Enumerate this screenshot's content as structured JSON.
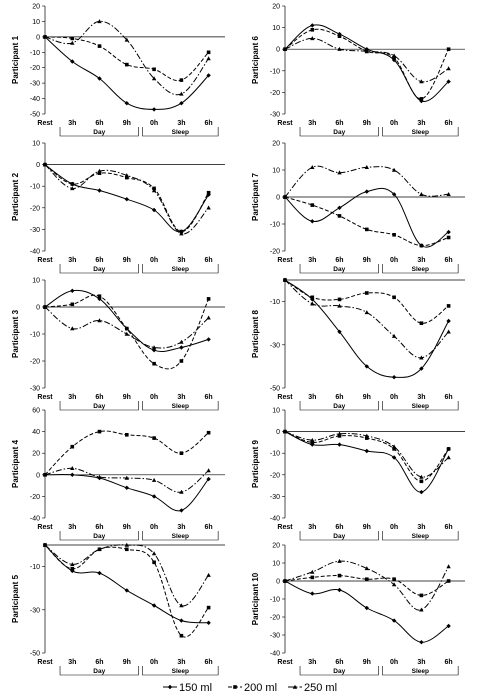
{
  "legend": [
    {
      "label": "150 ml",
      "series": 0
    },
    {
      "label": "200 ml",
      "series": 1
    },
    {
      "label": "250 ml",
      "series": 2
    }
  ],
  "chart_data": [
    {
      "type": "line",
      "ylabel": "Participant 1",
      "ylim": [
        -50,
        20
      ],
      "yticks": [
        -50,
        -40,
        -30,
        -20,
        -10,
        0,
        10,
        20
      ],
      "categories": [
        "Rest",
        "3h",
        "6h",
        "9h",
        "0h",
        "3h",
        "6h"
      ],
      "groups": [
        "Day",
        "Sleep"
      ],
      "series": [
        {
          "name": "150 ml",
          "values": [
            0,
            -16,
            -27,
            -43,
            -47,
            -43,
            -25
          ]
        },
        {
          "name": "200 ml",
          "values": [
            0,
            -1,
            -6,
            -18,
            -21,
            -28,
            -10
          ]
        },
        {
          "name": "250 ml",
          "values": [
            0,
            -4,
            10,
            -2,
            -27,
            -37,
            -14
          ]
        }
      ]
    },
    {
      "type": "line",
      "ylabel": "Participant 6",
      "ylim": [
        -30,
        20
      ],
      "yticks": [
        -30,
        -20,
        -10,
        0,
        10,
        20
      ],
      "categories": [
        "Rest",
        "3h",
        "6h",
        "9h",
        "0h",
        "3h",
        "6h"
      ],
      "groups": [
        "Day",
        "Sleep"
      ],
      "series": [
        {
          "name": "150 ml",
          "values": [
            0,
            11,
            7,
            0,
            -5,
            -24,
            -15
          ]
        },
        {
          "name": "200 ml",
          "values": [
            0,
            9,
            6,
            -1,
            -4,
            -23,
            0
          ]
        },
        {
          "name": "250 ml",
          "values": [
            0,
            5,
            0,
            -1,
            -3,
            -15,
            -9
          ]
        }
      ]
    },
    {
      "type": "line",
      "ylabel": "Participant 2",
      "ylim": [
        -40,
        10
      ],
      "yticks": [
        -40,
        -30,
        -20,
        -10,
        0,
        10
      ],
      "categories": [
        "Rest",
        "3h",
        "6h",
        "9h",
        "0h",
        "3h",
        "6h"
      ],
      "groups": [
        "Day",
        "Sleep"
      ],
      "series": [
        {
          "name": "150 ml",
          "values": [
            0,
            -9,
            -12,
            -16,
            -21,
            -31,
            -14
          ]
        },
        {
          "name": "200 ml",
          "values": [
            0,
            -9,
            -4,
            -6,
            -11,
            -31,
            -13
          ]
        },
        {
          "name": "250 ml",
          "values": [
            0,
            -11,
            -3,
            -5,
            -12,
            -32,
            -20
          ]
        }
      ]
    },
    {
      "type": "line",
      "ylabel": "Participant 7",
      "ylim": [
        -20,
        20
      ],
      "yticks": [
        -20,
        -10,
        0,
        10,
        20
      ],
      "categories": [
        "Rest",
        "3h",
        "6h",
        "9h",
        "0h",
        "3h",
        "6h"
      ],
      "groups": [
        "Day",
        "Sleep"
      ],
      "series": [
        {
          "name": "150 ml",
          "values": [
            0,
            -9,
            -4,
            2,
            1,
            -18,
            -13
          ]
        },
        {
          "name": "200 ml",
          "values": [
            0,
            -3,
            -7,
            -12,
            -14,
            -18,
            -15
          ]
        },
        {
          "name": "250 ml",
          "values": [
            0,
            11,
            9,
            11,
            10,
            1,
            1
          ]
        }
      ]
    },
    {
      "type": "line",
      "ylabel": "Participant 3",
      "ylim": [
        -30,
        10
      ],
      "yticks": [
        -30,
        -20,
        -10,
        0,
        10
      ],
      "categories": [
        "Rest",
        "3h",
        "6h",
        "9h",
        "0h",
        "3h",
        "6h"
      ],
      "groups": [
        "Day",
        "Sleep"
      ],
      "series": [
        {
          "name": "150 ml",
          "values": [
            0,
            6,
            3,
            -8,
            -16,
            -15,
            -12
          ]
        },
        {
          "name": "200 ml",
          "values": [
            0,
            1,
            4,
            -8,
            -21,
            -20,
            3
          ]
        },
        {
          "name": "250 ml",
          "values": [
            0,
            -8,
            -5,
            -10,
            -15,
            -13,
            -4
          ]
        }
      ]
    },
    {
      "type": "line",
      "ylabel": "Participant 8",
      "ylim": [
        -50,
        0
      ],
      "yticks": [
        -50,
        -30,
        -10
      ],
      "categories": [
        "Rest",
        "3h",
        "6h",
        "9h",
        "0h",
        "3h",
        "6h"
      ],
      "groups": [
        "Day",
        "Sleep"
      ],
      "series": [
        {
          "name": "150 ml",
          "values": [
            0,
            -9,
            -24,
            -40,
            -45,
            -41,
            -19
          ]
        },
        {
          "name": "200 ml",
          "values": [
            0,
            -8,
            -9,
            -6,
            -8,
            -20,
            -12
          ]
        },
        {
          "name": "250 ml",
          "values": [
            0,
            -11,
            -12,
            -15,
            -26,
            -36,
            -24
          ]
        }
      ]
    },
    {
      "type": "line",
      "ylabel": "Participant 4",
      "ylim": [
        -40,
        60
      ],
      "yticks": [
        -40,
        -20,
        0,
        20,
        40,
        60
      ],
      "categories": [
        "Rest",
        "3h",
        "6h",
        "9h",
        "0h",
        "3h",
        "6h"
      ],
      "groups": [
        "Day",
        "Sleep"
      ],
      "series": [
        {
          "name": "150 ml",
          "values": [
            0,
            0,
            -3,
            -12,
            -20,
            -33,
            -4
          ]
        },
        {
          "name": "200 ml",
          "values": [
            0,
            26,
            40,
            37,
            34,
            20,
            39
          ]
        },
        {
          "name": "250 ml",
          "values": [
            0,
            6,
            -2,
            -3,
            -5,
            -16,
            4
          ]
        }
      ]
    },
    {
      "type": "line",
      "ylabel": "Participant 9",
      "ylim": [
        -40,
        10
      ],
      "yticks": [
        -40,
        -30,
        -20,
        -10,
        0,
        10
      ],
      "categories": [
        "Rest",
        "3h",
        "6h",
        "9h",
        "0h",
        "3h",
        "6h"
      ],
      "groups": [
        "Day",
        "Sleep"
      ],
      "series": [
        {
          "name": "150 ml",
          "values": [
            0,
            -6,
            -6,
            -9,
            -12,
            -28,
            -8
          ]
        },
        {
          "name": "200 ml",
          "values": [
            0,
            -5,
            -2,
            -3,
            -8,
            -23,
            -8
          ]
        },
        {
          "name": "250 ml",
          "values": [
            0,
            -4,
            -1,
            -2,
            -7,
            -21,
            -12
          ]
        }
      ]
    },
    {
      "type": "line",
      "ylabel": "Participant 5",
      "ylim": [
        -50,
        0
      ],
      "yticks": [
        -50,
        -30,
        -10
      ],
      "categories": [
        "Rest",
        "3h",
        "6h",
        "9h",
        "0h",
        "3h",
        "6h"
      ],
      "groups": [
        "Day",
        "Sleep"
      ],
      "series": [
        {
          "name": "150 ml",
          "values": [
            0,
            -12,
            -13,
            -21,
            -28,
            -35,
            -36
          ]
        },
        {
          "name": "200 ml",
          "values": [
            0,
            -11,
            -2,
            -2,
            -8,
            -42,
            -29
          ]
        },
        {
          "name": "250 ml",
          "values": [
            0,
            -9,
            -2,
            0,
            -4,
            -28,
            -14
          ]
        }
      ]
    },
    {
      "type": "line",
      "ylabel": "Participant 10",
      "ylim": [
        -40,
        20
      ],
      "yticks": [
        -40,
        -30,
        -20,
        -10,
        0,
        10,
        20
      ],
      "categories": [
        "Rest",
        "3h",
        "6h",
        "9h",
        "0h",
        "3h",
        "6h"
      ],
      "groups": [
        "Day",
        "Sleep"
      ],
      "series": [
        {
          "name": "150 ml",
          "values": [
            0,
            -7,
            -5,
            -15,
            -22,
            -34,
            -25
          ]
        },
        {
          "name": "200 ml",
          "values": [
            0,
            2,
            3,
            1,
            1,
            -8,
            0
          ]
        },
        {
          "name": "250 ml",
          "values": [
            0,
            5,
            11,
            7,
            -2,
            -16,
            8
          ]
        }
      ]
    }
  ]
}
